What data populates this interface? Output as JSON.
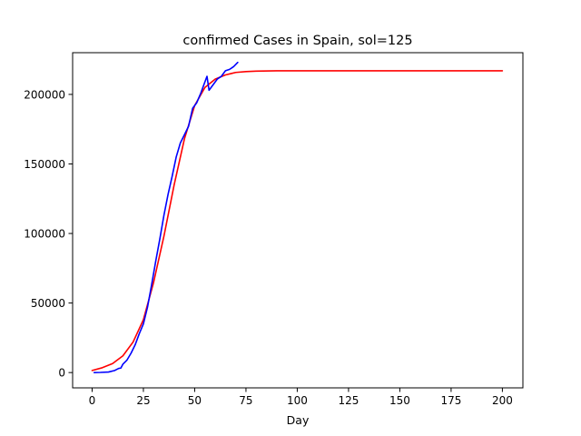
{
  "chart_data": {
    "type": "line",
    "title": "confirmed Cases in Spain, sol=125",
    "xlabel": "Day",
    "ylabel": "",
    "xlim": [
      -9.5,
      210
    ],
    "ylim": [
      -11000,
      230000
    ],
    "x_ticks": [
      0,
      25,
      50,
      75,
      100,
      125,
      150,
      175,
      200
    ],
    "x_tick_labels": [
      "0",
      "25",
      "50",
      "75",
      "100",
      "125",
      "150",
      "175",
      "200"
    ],
    "y_ticks": [
      0,
      50000,
      100000,
      150000,
      200000
    ],
    "y_tick_labels": [
      "0",
      "50000",
      "100000",
      "150000",
      "200000"
    ],
    "grid": false,
    "legend": "none",
    "series": [
      {
        "color": "#ff0000",
        "x": [
          0,
          5,
          10,
          15,
          20,
          25,
          30,
          35,
          40,
          45,
          50,
          55,
          60,
          65,
          70,
          75,
          80,
          90,
          100,
          125,
          150,
          175,
          200
        ],
        "y": [
          1500,
          3500,
          6500,
          12000,
          22000,
          38000,
          65000,
          98000,
          135000,
          168000,
          192000,
          205000,
          211000,
          214000,
          215800,
          216400,
          216700,
          216950,
          217000,
          217000,
          217000,
          217000,
          217000
        ]
      },
      {
        "color": "#0000ff",
        "x": [
          1,
          4,
          8,
          11,
          13,
          14,
          15,
          17,
          19,
          21,
          23,
          25,
          27,
          29,
          31,
          33,
          35,
          37,
          39,
          41,
          43,
          45,
          47,
          49,
          51,
          53,
          55,
          56,
          57,
          59,
          61,
          63,
          65,
          67,
          69,
          71
        ],
        "y": [
          0,
          100,
          400,
          1500,
          3000,
          3200,
          6000,
          9000,
          14000,
          20000,
          28000,
          35000,
          47000,
          63000,
          80000,
          96000,
          113000,
          128000,
          141000,
          155000,
          165000,
          171000,
          177000,
          190000,
          194000,
          201000,
          209000,
          213000,
          203000,
          207000,
          211000,
          213000,
          217000,
          218000,
          220000,
          223000
        ]
      }
    ]
  }
}
